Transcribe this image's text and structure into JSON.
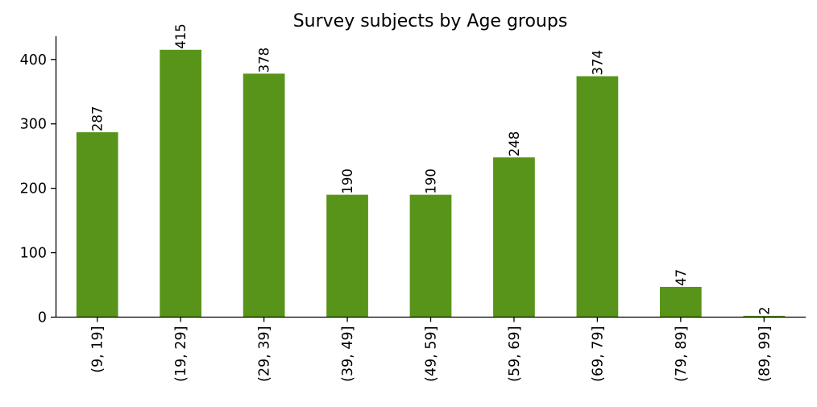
{
  "chart_data": {
    "type": "bar",
    "title": "Survey subjects by Age groups",
    "xlabel": "",
    "ylabel": "",
    "categories": [
      "(9, 19]",
      "(19, 29]",
      "(29, 39]",
      "(39, 49]",
      "(49, 59]",
      "(59, 69]",
      "(69, 79]",
      "(79, 89]",
      "(89, 99]"
    ],
    "values": [
      287,
      415,
      378,
      190,
      190,
      248,
      374,
      47,
      2
    ],
    "data_labels": [
      "287",
      "415",
      "378",
      "190",
      "190",
      "248",
      "374",
      "47",
      "2"
    ],
    "y_ticks": [
      0,
      100,
      200,
      300,
      400
    ],
    "ylim": [
      0,
      436
    ],
    "grid": false,
    "legend": "none",
    "bar_color": "#58941a"
  }
}
